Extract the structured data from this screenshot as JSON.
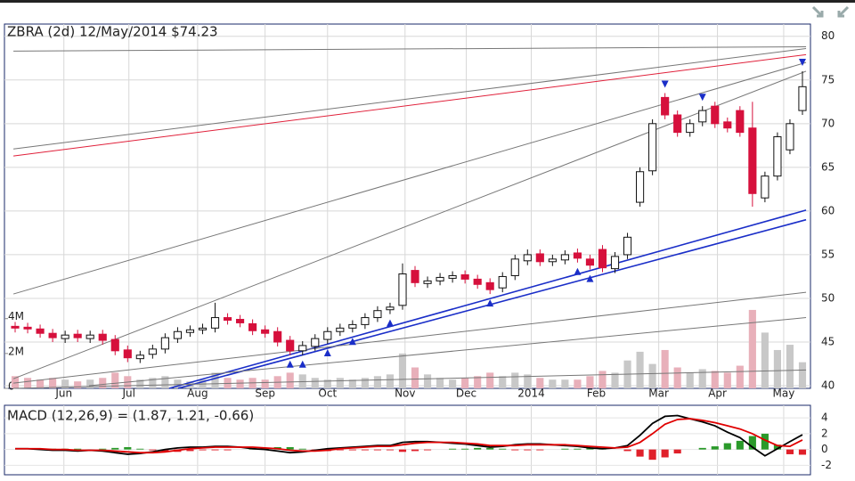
{
  "chart_data": [
    {
      "type": "candlestick",
      "title": "ZBRA (2d) 12/May/2014 $74.23",
      "open": [
        46.8,
        46.7,
        46.5,
        46.0,
        45.4,
        45.9,
        45.4,
        45.9,
        45.3,
        44.1,
        43.1,
        43.6,
        44.2,
        45.4,
        46.1,
        46.4,
        46.6,
        47.8,
        47.6,
        47.1,
        46.4,
        46.2,
        45.2,
        44.0,
        44.5,
        45.3,
        46.2,
        46.6,
        47.0,
        47.8,
        48.7,
        49.2,
        53.2,
        51.7,
        52.0,
        52.3,
        52.7,
        52.2,
        51.8,
        51.2,
        52.6,
        54.3,
        55.1,
        54.2,
        54.4,
        55.2,
        54.5,
        55.6,
        53.4,
        55.0,
        61.0,
        64.6,
        73.0,
        71.0,
        69.0,
        70.2,
        72.0,
        70.2,
        71.5,
        69.5,
        61.5,
        64.0,
        67.0,
        71.5
      ],
      "high": [
        47.3,
        47.2,
        47.0,
        46.5,
        46.3,
        46.4,
        46.3,
        46.4,
        45.8,
        44.6,
        44.0,
        44.7,
        46.0,
        46.7,
        46.9,
        47.1,
        49.5,
        48.3,
        48.1,
        47.6,
        46.9,
        46.7,
        45.7,
        45.1,
        45.9,
        46.7,
        47.1,
        47.5,
        48.3,
        49.1,
        49.5,
        54.0,
        53.7,
        52.5,
        52.9,
        53.1,
        53.2,
        52.7,
        52.3,
        53.0,
        55.0,
        55.6,
        55.6,
        55.0,
        55.5,
        55.7,
        55.0,
        56.1,
        55.3,
        57.5,
        65.0,
        70.5,
        73.5,
        71.5,
        70.5,
        72.0,
        72.5,
        70.7,
        72.0,
        72.5,
        64.5,
        69.0,
        70.5,
        76.0
      ],
      "low": [
        46.1,
        46.0,
        45.5,
        45.0,
        44.9,
        45.0,
        44.9,
        44.7,
        43.5,
        42.7,
        42.6,
        43.1,
        43.7,
        44.9,
        45.6,
        45.9,
        46.1,
        47.0,
        46.7,
        45.8,
        45.5,
        44.5,
        43.5,
        43.5,
        44.0,
        44.8,
        45.7,
        46.1,
        46.5,
        47.3,
        48.2,
        48.7,
        51.3,
        51.2,
        51.5,
        51.8,
        51.7,
        51.1,
        50.5,
        50.7,
        52.1,
        53.8,
        53.7,
        53.7,
        53.9,
        54.1,
        53.3,
        53.0,
        52.9,
        54.5,
        60.5,
        64.1,
        70.5,
        68.5,
        68.5,
        69.7,
        69.5,
        69.0,
        68.5,
        60.5,
        61.0,
        63.5,
        66.5,
        71.0
      ],
      "close": [
        46.6,
        46.5,
        46.0,
        45.5,
        45.8,
        45.5,
        45.8,
        45.2,
        44.0,
        43.2,
        43.5,
        44.2,
        45.5,
        46.2,
        46.4,
        46.6,
        47.8,
        47.5,
        47.2,
        46.3,
        46.0,
        45.0,
        44.0,
        44.6,
        45.4,
        46.2,
        46.6,
        47.0,
        47.8,
        48.6,
        49.0,
        52.8,
        51.8,
        52.0,
        52.4,
        52.6,
        52.2,
        51.6,
        51.0,
        52.5,
        54.5,
        55.0,
        54.2,
        54.5,
        55.0,
        54.6,
        53.8,
        53.5,
        54.8,
        57.0,
        64.5,
        70.0,
        71.0,
        69.0,
        70.0,
        71.5,
        70.0,
        69.5,
        69.0,
        62.0,
        64.0,
        68.5,
        70.0,
        74.23
      ],
      "volume": [
        700000,
        600000,
        500000,
        600000,
        500000,
        400000,
        500000,
        600000,
        900000,
        700000,
        500000,
        600000,
        700000,
        500000,
        400000,
        500000,
        900000,
        600000,
        500000,
        600000,
        500000,
        700000,
        900000,
        800000,
        600000,
        500000,
        600000,
        500000,
        600000,
        700000,
        800000,
        2000000,
        1200000,
        800000,
        600000,
        500000,
        600000,
        700000,
        900000,
        700000,
        900000,
        800000,
        600000,
        500000,
        500000,
        500000,
        700000,
        1000000,
        900000,
        1600000,
        2100000,
        1400000,
        2200000,
        1200000,
        900000,
        1100000,
        1000000,
        900000,
        1300000,
        4500000,
        3200000,
        2200000,
        2500000,
        1500000
      ],
      "up_color": "#ffffff",
      "down_color": "#d6103c",
      "volume_up_color": "#c8c8c8",
      "volume_down_color": "#e8b0ba",
      "xlim": [
        -0.5,
        63.5
      ],
      "xticks": [
        {
          "value": 3.9,
          "label": "Jun"
        },
        {
          "value": 9.1,
          "label": "Jul"
        },
        {
          "value": 14.6,
          "label": "Aug"
        },
        {
          "value": 20.0,
          "label": "Sep"
        },
        {
          "value": 25.0,
          "label": "Oct"
        },
        {
          "value": 31.2,
          "label": "Nov"
        },
        {
          "value": 36.1,
          "label": "Dec"
        },
        {
          "value": 41.3,
          "label": "2014"
        },
        {
          "value": 46.5,
          "label": "Feb"
        },
        {
          "value": 51.5,
          "label": "Mar"
        },
        {
          "value": 56.2,
          "label": "Apr"
        },
        {
          "value": 61.5,
          "label": "May"
        }
      ],
      "ylim": [
        39.7,
        81.4
      ],
      "yticks": [
        40,
        45,
        50,
        55,
        60,
        65,
        70,
        75,
        80
      ],
      "y2lim": [
        0,
        20900000
      ],
      "y2ticks": [
        0,
        {
          "value": 2000000,
          "label": "2M"
        },
        {
          "value": 4000000,
          "label": "4M"
        }
      ],
      "grid": true,
      "trend_lines": [
        {
          "color": "#777777",
          "x1": -0.14,
          "y1": 78.3,
          "x2": 63.29,
          "y2": 78.8
        },
        {
          "color": "#777777",
          "x1": -0.14,
          "y1": 67.1,
          "x2": 63.29,
          "y2": 78.6
        },
        {
          "color": "#e0203a",
          "x1": -0.14,
          "y1": 66.3,
          "x2": 63.29,
          "y2": 77.9
        },
        {
          "color": "#777777",
          "x1": -0.14,
          "y1": 50.5,
          "x2": 63.29,
          "y2": 77.0
        },
        {
          "color": "#777777",
          "x1": -0.14,
          "y1": 40.8,
          "x2": 63.29,
          "y2": 76.0
        },
        {
          "color": "#1a2ec8",
          "x1": 12.33,
          "y1": 39.7,
          "x2": 63.29,
          "y2": 60.1
        },
        {
          "color": "#1a2ec8",
          "x1": 13.04,
          "y1": 39.7,
          "x2": 63.29,
          "y2": 59.0
        },
        {
          "color": "#777777",
          "x1": -0.14,
          "y1": 40.3,
          "x2": 63.29,
          "y2": 50.7
        },
        {
          "color": "#777777",
          "x1": 5.91,
          "y1": 40.0,
          "x2": 63.29,
          "y2": 47.8
        },
        {
          "color": "#777777",
          "x1": -0.14,
          "y1": 39.7,
          "x2": 63.29,
          "y2": 41.8
        }
      ],
      "signal_color": "#1a2ec8",
      "signals_up": [
        22,
        23,
        25,
        27,
        30,
        38,
        45,
        46
      ],
      "signals_down": [
        52,
        55,
        63
      ]
    },
    {
      "type": "macd",
      "title": "MACD (12,26,9) = (1.87, 1.21, -0.66)",
      "macd": [
        0.1,
        0.1,
        0,
        -0.1,
        -0.1,
        -0.2,
        -0.1,
        -0.2,
        -0.4,
        -0.6,
        -0.5,
        -0.3,
        0,
        0.2,
        0.3,
        0.3,
        0.4,
        0.4,
        0.3,
        0.1,
        0,
        -0.2,
        -0.4,
        -0.3,
        -0.1,
        0.1,
        0.2,
        0.3,
        0.4,
        0.5,
        0.5,
        0.9,
        1.0,
        1.0,
        0.9,
        0.8,
        0.7,
        0.5,
        0.3,
        0.4,
        0.6,
        0.7,
        0.7,
        0.6,
        0.5,
        0.4,
        0.2,
        0.1,
        0.2,
        0.5,
        1.8,
        3.3,
        4.2,
        4.3,
        3.9,
        3.5,
        3.0,
        2.2,
        1.5,
        0.3,
        -0.8,
        0.1,
        1.0,
        1.87
      ],
      "signal": [
        0.1,
        0.1,
        0.1,
        0,
        0,
        -0.1,
        -0.1,
        -0.1,
        -0.2,
        -0.3,
        -0.4,
        -0.4,
        -0.3,
        -0.1,
        0.1,
        0.2,
        0.3,
        0.3,
        0.3,
        0.3,
        0.2,
        0.1,
        -0.1,
        -0.2,
        -0.2,
        -0.1,
        0.1,
        0.2,
        0.3,
        0.4,
        0.4,
        0.6,
        0.8,
        0.9,
        0.9,
        0.9,
        0.8,
        0.7,
        0.5,
        0.5,
        0.5,
        0.6,
        0.6,
        0.6,
        0.6,
        0.5,
        0.4,
        0.3,
        0.2,
        0.3,
        0.9,
        2.0,
        3.2,
        3.8,
        3.9,
        3.7,
        3.4,
        3.0,
        2.6,
        2.0,
        1.2,
        0.5,
        0.4,
        1.21
      ],
      "histogram": [
        0,
        0,
        0.1,
        0.1,
        0.1,
        0.1,
        0,
        0.1,
        0.2,
        0.3,
        0.1,
        -0.1,
        -0.3,
        -0.3,
        -0.2,
        -0.1,
        -0.1,
        -0.1,
        0,
        0.2,
        0.2,
        0.3,
        0.3,
        0.1,
        -0.1,
        -0.2,
        -0.1,
        -0.1,
        -0.1,
        -0.1,
        -0.1,
        -0.3,
        -0.2,
        -0.1,
        0,
        0.1,
        0.1,
        0.2,
        0.2,
        0.1,
        -0.1,
        -0.1,
        -0.1,
        0,
        0.1,
        0.1,
        0.2,
        0.2,
        0,
        -0.2,
        -0.9,
        -1.3,
        -1.0,
        -0.5,
        0,
        0.2,
        0.4,
        0.8,
        1.1,
        1.7,
        2.0,
        0.6,
        -0.6,
        -0.66
      ],
      "macd_color": "#000000",
      "signal_color": "#e00000",
      "hist_up_color": "#2a9a2a",
      "hist_down_color": "#e0202a",
      "ylim": [
        -3.2,
        5.6
      ],
      "yticks": [
        -2,
        0,
        2,
        4
      ],
      "grid": true
    }
  ]
}
